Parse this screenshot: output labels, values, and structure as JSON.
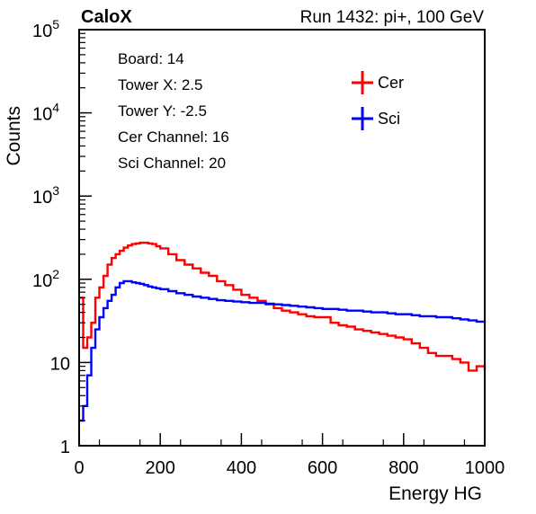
{
  "chart_data": {
    "type": "line",
    "title_left": "CaloX",
    "title_right": "Run 1432: pi+, 100 GeV",
    "xlabel": "Energy HG",
    "ylabel": "Counts",
    "xlim": [
      0,
      1000
    ],
    "ylim": [
      1,
      100000
    ],
    "y_scale": "log",
    "grid": false,
    "legend_position": "top-right",
    "x_ticks": [
      {
        "value": 0,
        "label": "0"
      },
      {
        "value": 200,
        "label": "200"
      },
      {
        "value": 400,
        "label": "400"
      },
      {
        "value": 600,
        "label": "600"
      },
      {
        "value": 800,
        "label": "800"
      },
      {
        "value": 1000,
        "label": "1000"
      }
    ],
    "y_ticks": [
      {
        "value": 1,
        "base": "1",
        "exp": ""
      },
      {
        "value": 10,
        "base": "10",
        "exp": ""
      },
      {
        "value": 100,
        "base": "10",
        "exp": "2"
      },
      {
        "value": 1000,
        "base": "10",
        "exp": "3"
      },
      {
        "value": 10000,
        "base": "10",
        "exp": "4"
      },
      {
        "value": 100000,
        "base": "10",
        "exp": "5"
      }
    ],
    "info_lines": [
      "Board: 14",
      "Tower X: 2.5",
      "Tower Y: -2.5",
      "Cer Channel: 16",
      "Sci Channel: 20"
    ],
    "series": [
      {
        "name": "Cer",
        "color": "#ff0000",
        "x": [
          0,
          10,
          20,
          30,
          40,
          50,
          60,
          70,
          80,
          90,
          100,
          110,
          120,
          130,
          140,
          150,
          160,
          170,
          180,
          190,
          200,
          220,
          240,
          260,
          280,
          300,
          320,
          340,
          360,
          380,
          400,
          420,
          440,
          460,
          480,
          500,
          520,
          540,
          560,
          580,
          600,
          620,
          640,
          660,
          680,
          700,
          720,
          740,
          760,
          780,
          800,
          820,
          840,
          860,
          880,
          900,
          920,
          940,
          960,
          980,
          1000
        ],
        "y": [
          60,
          15,
          20,
          30,
          60,
          80,
          110,
          150,
          180,
          200,
          220,
          240,
          255,
          265,
          270,
          275,
          275,
          270,
          265,
          250,
          235,
          200,
          170,
          150,
          135,
          120,
          110,
          95,
          85,
          75,
          65,
          60,
          55,
          50,
          45,
          42,
          40,
          38,
          36,
          35,
          35,
          30,
          28,
          27,
          25,
          24,
          23,
          22,
          21,
          20,
          19,
          17,
          15,
          13,
          12,
          12,
          11,
          10,
          8,
          9,
          8
        ]
      },
      {
        "name": "Sci",
        "color": "#0000ff",
        "x": [
          0,
          10,
          20,
          30,
          40,
          50,
          60,
          70,
          80,
          90,
          100,
          110,
          120,
          130,
          140,
          150,
          160,
          170,
          180,
          190,
          200,
          220,
          240,
          260,
          280,
          300,
          320,
          340,
          360,
          380,
          400,
          420,
          440,
          460,
          480,
          500,
          520,
          540,
          560,
          580,
          600,
          620,
          640,
          660,
          680,
          700,
          720,
          740,
          760,
          780,
          800,
          820,
          840,
          860,
          880,
          900,
          920,
          940,
          960,
          980,
          1000
        ],
        "y": [
          2,
          3,
          7,
          15,
          25,
          35,
          45,
          55,
          65,
          80,
          90,
          95,
          95,
          92,
          90,
          88,
          85,
          82,
          80,
          78,
          76,
          72,
          68,
          65,
          62,
          60,
          58,
          56,
          55,
          54,
          53,
          52,
          52,
          51,
          50,
          49,
          48,
          47,
          46,
          45,
          44,
          44,
          43,
          42,
          42,
          41,
          40,
          40,
          39,
          38,
          38,
          37,
          36,
          36,
          35,
          35,
          34,
          33,
          32,
          31,
          30
        ]
      }
    ]
  }
}
